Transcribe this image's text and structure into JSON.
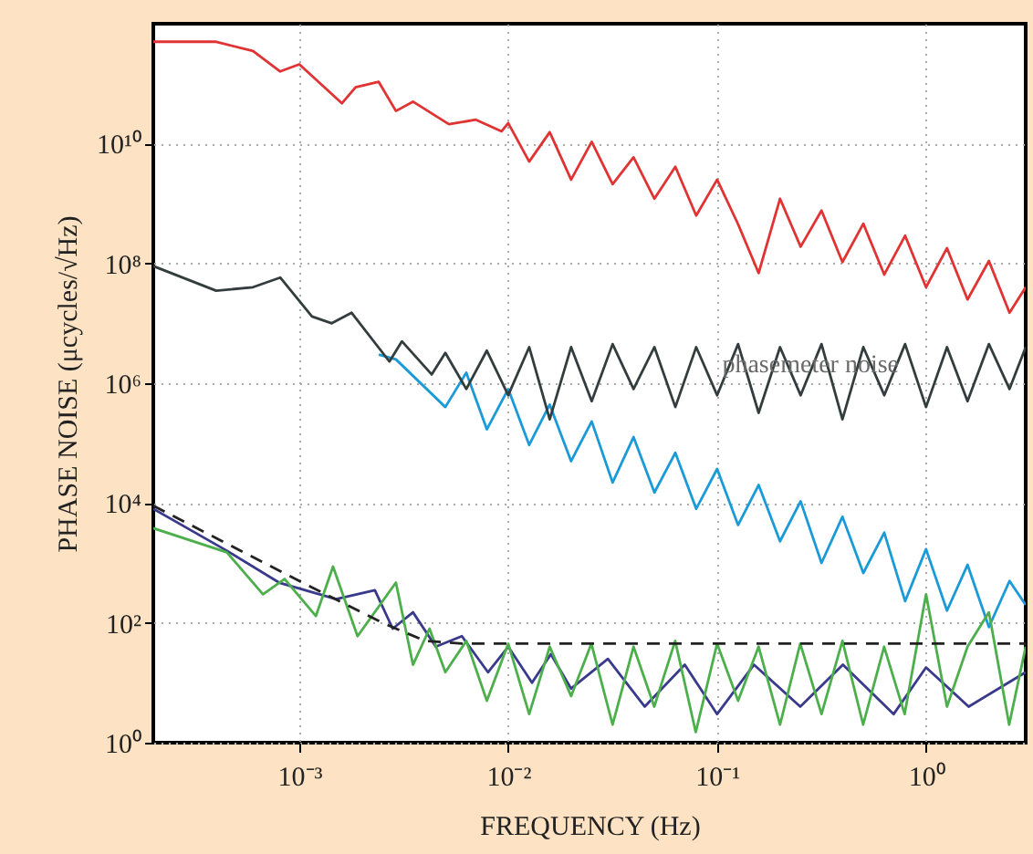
{
  "chart_data": {
    "type": "line",
    "xlabel": "FREQUENCY (Hz)",
    "ylabel": "PHASE NOISE (μcycles/√Hz)",
    "log": "xy",
    "grid": true,
    "line_style": "solid",
    "marker": "none",
    "xlim": [
      0.0002,
      3
    ],
    "ylim": [
      1,
      1000000000000
    ],
    "xticks": [
      {
        "value": 0.001,
        "label": "10⁻³"
      },
      {
        "value": 0.01,
        "label": "10⁻²"
      },
      {
        "value": 0.1,
        "label": "10⁻¹"
      },
      {
        "value": 1,
        "label": "10⁰"
      }
    ],
    "yticks": [
      {
        "value": 1,
        "label": "10⁰"
      },
      {
        "value": 100,
        "label": "10²"
      },
      {
        "value": 10000,
        "label": "10⁴"
      },
      {
        "value": 1000000,
        "label": "10⁶"
      },
      {
        "value": 100000000,
        "label": "10⁸"
      },
      {
        "value": 10000000000,
        "label": "10¹⁰"
      }
    ],
    "annotations": [
      {
        "text": "phasemeter noise",
        "x": 0.28,
        "y": 2000000
      }
    ],
    "series": [
      {
        "color": "#e03333",
        "x": [
          0.0002,
          0.0004,
          0.0006,
          0.00081,
          0.001,
          0.0016,
          0.00186,
          0.0024,
          0.0029,
          0.0035,
          0.0052,
          0.007,
          0.0093,
          0.01,
          0.0126,
          0.0158,
          0.02,
          0.0251,
          0.0316,
          0.0398,
          0.0501,
          0.0631,
          0.0794,
          0.1,
          0.126,
          0.158,
          0.2,
          0.251,
          0.316,
          0.398,
          0.501,
          0.631,
          0.794,
          1,
          1.26,
          1.58,
          2,
          2.51,
          3
        ],
        "values": [
          500000000000.0,
          500000000000.0,
          350000000000.0,
          160000000000.0,
          210000000000.0,
          47000000000.0,
          87000000000.0,
          107000000000.0,
          35000000000.0,
          50000000000.0,
          21000000000.0,
          25000000000.0,
          16000000000.0,
          22000000000.0,
          5000000000.0,
          15500000000.0,
          2500000000.0,
          10700000000.0,
          2100000000.0,
          5900000000.0,
          1200000000.0,
          4100000000.0,
          630000000.0,
          2500000000.0,
          450000000.0,
          69000000.0,
          1200000000.0,
          190000000.0,
          760000000.0,
          105000000.0,
          460000000.0,
          65000000.0,
          290000000.0,
          40000000.0,
          180000000.0,
          25000000.0,
          110000000.0,
          15000000.0,
          40000000.0
        ]
      },
      {
        "color": "#1a9ad6",
        "x": [
          0.0024,
          0.0029,
          0.005,
          0.0063,
          0.0079,
          0.01,
          0.0126,
          0.0158,
          0.02,
          0.0251,
          0.0316,
          0.0398,
          0.0501,
          0.0631,
          0.0794,
          0.1,
          0.126,
          0.158,
          0.2,
          0.251,
          0.316,
          0.398,
          0.501,
          0.631,
          0.794,
          1,
          1.26,
          1.58,
          2,
          2.51,
          3
        ],
        "values": [
          3000000.0,
          2500000.0,
          400000.0,
          1500000.0,
          170000.0,
          800000.0,
          93000.0,
          440000.0,
          50000.0,
          230000.0,
          22000.0,
          126000.0,
          15000.0,
          69000.0,
          8000.0,
          37000.0,
          4300.0,
          20000.0,
          2300.0,
          10700.0,
          1000.0,
          5900.0,
          680,
          3200.0,
          230,
          1700.0,
          160,
          930,
          85,
          500,
          200
        ]
      },
      {
        "color": "#333d3d",
        "x": [
          0.0002,
          0.0004,
          0.0006,
          0.00081,
          0.00115,
          0.00143,
          0.00178,
          0.0027,
          0.0031,
          0.0043,
          0.005,
          0.0063,
          0.0079,
          0.01,
          0.0126,
          0.0158,
          0.02,
          0.0251,
          0.0316,
          0.0398,
          0.0501,
          0.0631,
          0.0794,
          0.1,
          0.126,
          0.158,
          0.2,
          0.251,
          0.316,
          0.398,
          0.501,
          0.631,
          0.794,
          1,
          1.26,
          1.58,
          2,
          2.51,
          3
        ],
        "values": [
          90000000.0,
          35000000.0,
          40000000.0,
          58000000.0,
          13000000.0,
          10000000.0,
          15000000.0,
          2300000.0,
          5000000.0,
          1400000.0,
          3200000.0,
          800000.0,
          3500000.0,
          630000.0,
          4000000.0,
          250000.0,
          4000000.0,
          500000.0,
          4500000.0,
          800000.0,
          4000000.0,
          400000.0,
          4000000.0,
          630000.0,
          4500000.0,
          320000.0,
          4000000.0,
          630000.0,
          4500000.0,
          250000.0,
          4000000.0,
          630000.0,
          4500000.0,
          400000.0,
          4000000.0,
          500000.0,
          4500000.0,
          800000.0,
          4000000.0
        ]
      },
      {
        "color": "#3a3a8c",
        "x": [
          0.0002,
          0.00045,
          0.0008,
          0.0015,
          0.0023,
          0.0028,
          0.0035,
          0.0045,
          0.006,
          0.008,
          0.01,
          0.013,
          0.016,
          0.02,
          0.03,
          0.045,
          0.07,
          0.1,
          0.15,
          0.25,
          0.4,
          0.7,
          1,
          1.6,
          3
        ],
        "values": [
          8000,
          1600,
          470,
          250,
          350,
          80,
          150,
          40,
          60,
          15,
          40,
          10,
          30,
          8,
          25,
          4,
          20,
          3,
          20,
          4,
          20,
          3,
          18,
          4,
          15
        ]
      },
      {
        "color": "#4caf4c",
        "x": [
          0.0002,
          0.00045,
          0.00067,
          0.00085,
          0.0012,
          0.00145,
          0.0019,
          0.0029,
          0.0035,
          0.0042,
          0.005,
          0.0063,
          0.0079,
          0.01,
          0.0126,
          0.0158,
          0.02,
          0.025,
          0.0316,
          0.0398,
          0.05,
          0.063,
          0.079,
          0.1,
          0.126,
          0.158,
          0.2,
          0.25,
          0.316,
          0.398,
          0.5,
          0.63,
          0.79,
          1,
          1.26,
          1.58,
          2,
          2.5,
          3
        ],
        "values": [
          3800,
          1500,
          300,
          540,
          130,
          870,
          60,
          470,
          20,
          80,
          15,
          50,
          5,
          45,
          3,
          40,
          6,
          45,
          2,
          40,
          4,
          50,
          1.5,
          45,
          5,
          40,
          2,
          45,
          3,
          50,
          2,
          40,
          3,
          300,
          4,
          40,
          150,
          2,
          40
        ]
      },
      {
        "color": "#222222",
        "line_style": "dashed",
        "x": [
          0.0002,
          0.001,
          0.0025,
          0.004,
          0.006,
          3
        ],
        "values": [
          9000,
          500,
          100,
          50,
          45,
          45
        ]
      }
    ]
  }
}
